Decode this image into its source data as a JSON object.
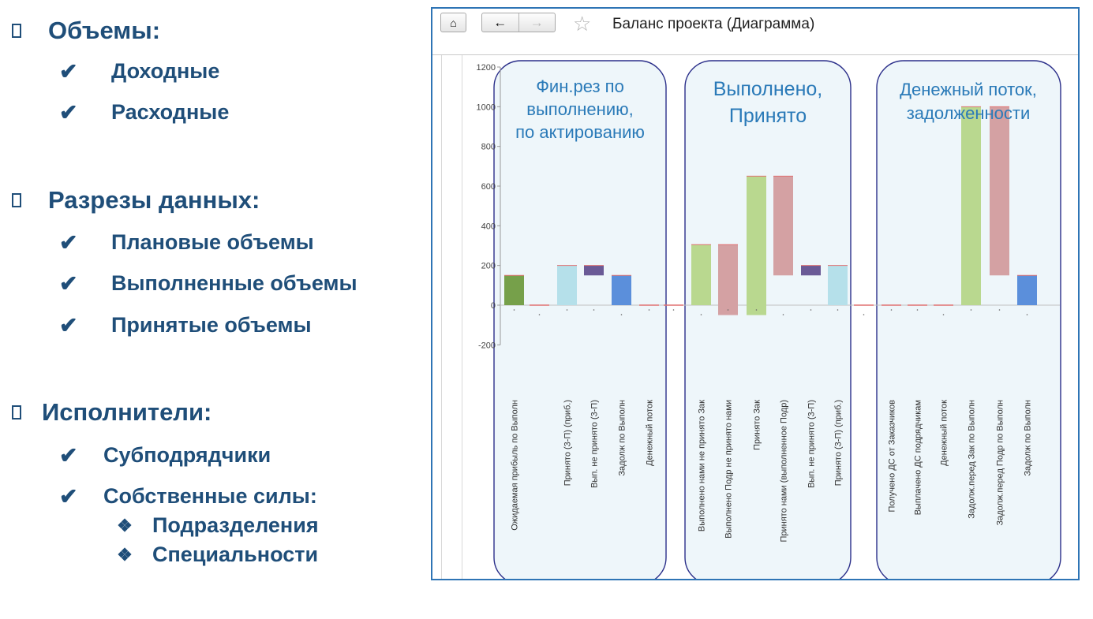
{
  "slide": {
    "sections": [
      {
        "bullet_icon": "square-bullet-icon",
        "title": "Объемы:",
        "items": [
          "Доходные",
          "Расходные"
        ]
      },
      {
        "bullet_icon": "square-bullet-icon",
        "title": "Разрезы данных:",
        "items": [
          "Плановые объемы",
          "Выполненные объемы",
          "Принятые объемы"
        ]
      },
      {
        "bullet_icon": "square-bullet-icon",
        "title": "Исполнители:",
        "items": [
          "Субподрядчики",
          "Собственные силы:"
        ],
        "subitems": [
          "Подразделения",
          "Специальности"
        ]
      }
    ],
    "check_icon": "✔",
    "diamond_icon": "❖",
    "text_color": "#1f4e79"
  },
  "window": {
    "title": "Баланс проекта (Диаграмма)",
    "home_icon": "⌂",
    "back_icon": "←",
    "forward_icon": "→",
    "favorite_icon": "☆",
    "border_color": "#2e74b5"
  },
  "chart_data": {
    "type": "bar",
    "ylim": [
      -200,
      1200
    ],
    "yticks": [
      1200,
      1000,
      800,
      600,
      400,
      200,
      0,
      -200
    ],
    "annotations": [
      {
        "lines": [
          "Фин.рез по",
          "выполнению,",
          "по актированию"
        ]
      },
      {
        "lines": [
          "Выполнено,",
          "Принято"
        ]
      },
      {
        "lines": [
          "Денежный поток,",
          "задолженности"
        ]
      }
    ],
    "bars": [
      {
        "label": "Ожидаемая прибыль по Выполн",
        "low": 0,
        "high": 150,
        "color": "#76a04a"
      },
      {
        "label": "",
        "low": 0,
        "high": 3,
        "color": "#e07070"
      },
      {
        "label": "Принято (3-П) (приб.)",
        "low": 0,
        "high": 200,
        "color": "#b5e0ea"
      },
      {
        "label": "Вып. не принято (3-П)",
        "low": 150,
        "high": 200,
        "color": "#6a5a96"
      },
      {
        "label": "Задолж по Выполн",
        "low": 0,
        "high": 150,
        "color": "#5b8fdb"
      },
      {
        "label": "Денежный поток",
        "low": 0,
        "high": 3,
        "color": "#e07070"
      },
      {
        "label": "",
        "low": 0,
        "high": 3,
        "color": "#e07070"
      },
      {
        "label": "Выполнено нами не принято Зак",
        "low": 0,
        "high": 305,
        "color": "#b9d88f"
      },
      {
        "label": "Выполнено Подр не принято нами",
        "low": -50,
        "high": 305,
        "color": "#d4a1a3"
      },
      {
        "label": "Принято Зак",
        "low": -50,
        "high": 650,
        "color": "#b9d88f"
      },
      {
        "label": "Принято нами (выполненное Подр)",
        "low": 150,
        "high": 650,
        "color": "#d4a1a3"
      },
      {
        "label": "Вып. не принято (3-П)",
        "low": 150,
        "high": 200,
        "color": "#6a5a96"
      },
      {
        "label": "Принято (3-П) (приб.)",
        "low": 0,
        "high": 200,
        "color": "#b5e0ea"
      },
      {
        "label": "",
        "low": 0,
        "high": 3,
        "color": "#e07070"
      },
      {
        "label": "Получено ДС от Заказчиков",
        "low": 0,
        "high": 3,
        "color": "#e07070"
      },
      {
        "label": "Выплачено ДС подрядчикам",
        "low": 0,
        "high": 3,
        "color": "#e07070"
      },
      {
        "label": "Денежный поток",
        "low": 0,
        "high": 3,
        "color": "#e07070"
      },
      {
        "label": "Задолж.перед Зак по Выполн",
        "low": 0,
        "high": 1000,
        "color": "#b9d88f"
      },
      {
        "label": "Задолж.перед Подр по Выполн",
        "low": 150,
        "high": 1000,
        "color": "#d4a1a3"
      },
      {
        "label": "Задолж по Выполн",
        "low": 0,
        "high": 150,
        "color": "#5b8fdb"
      }
    ]
  }
}
